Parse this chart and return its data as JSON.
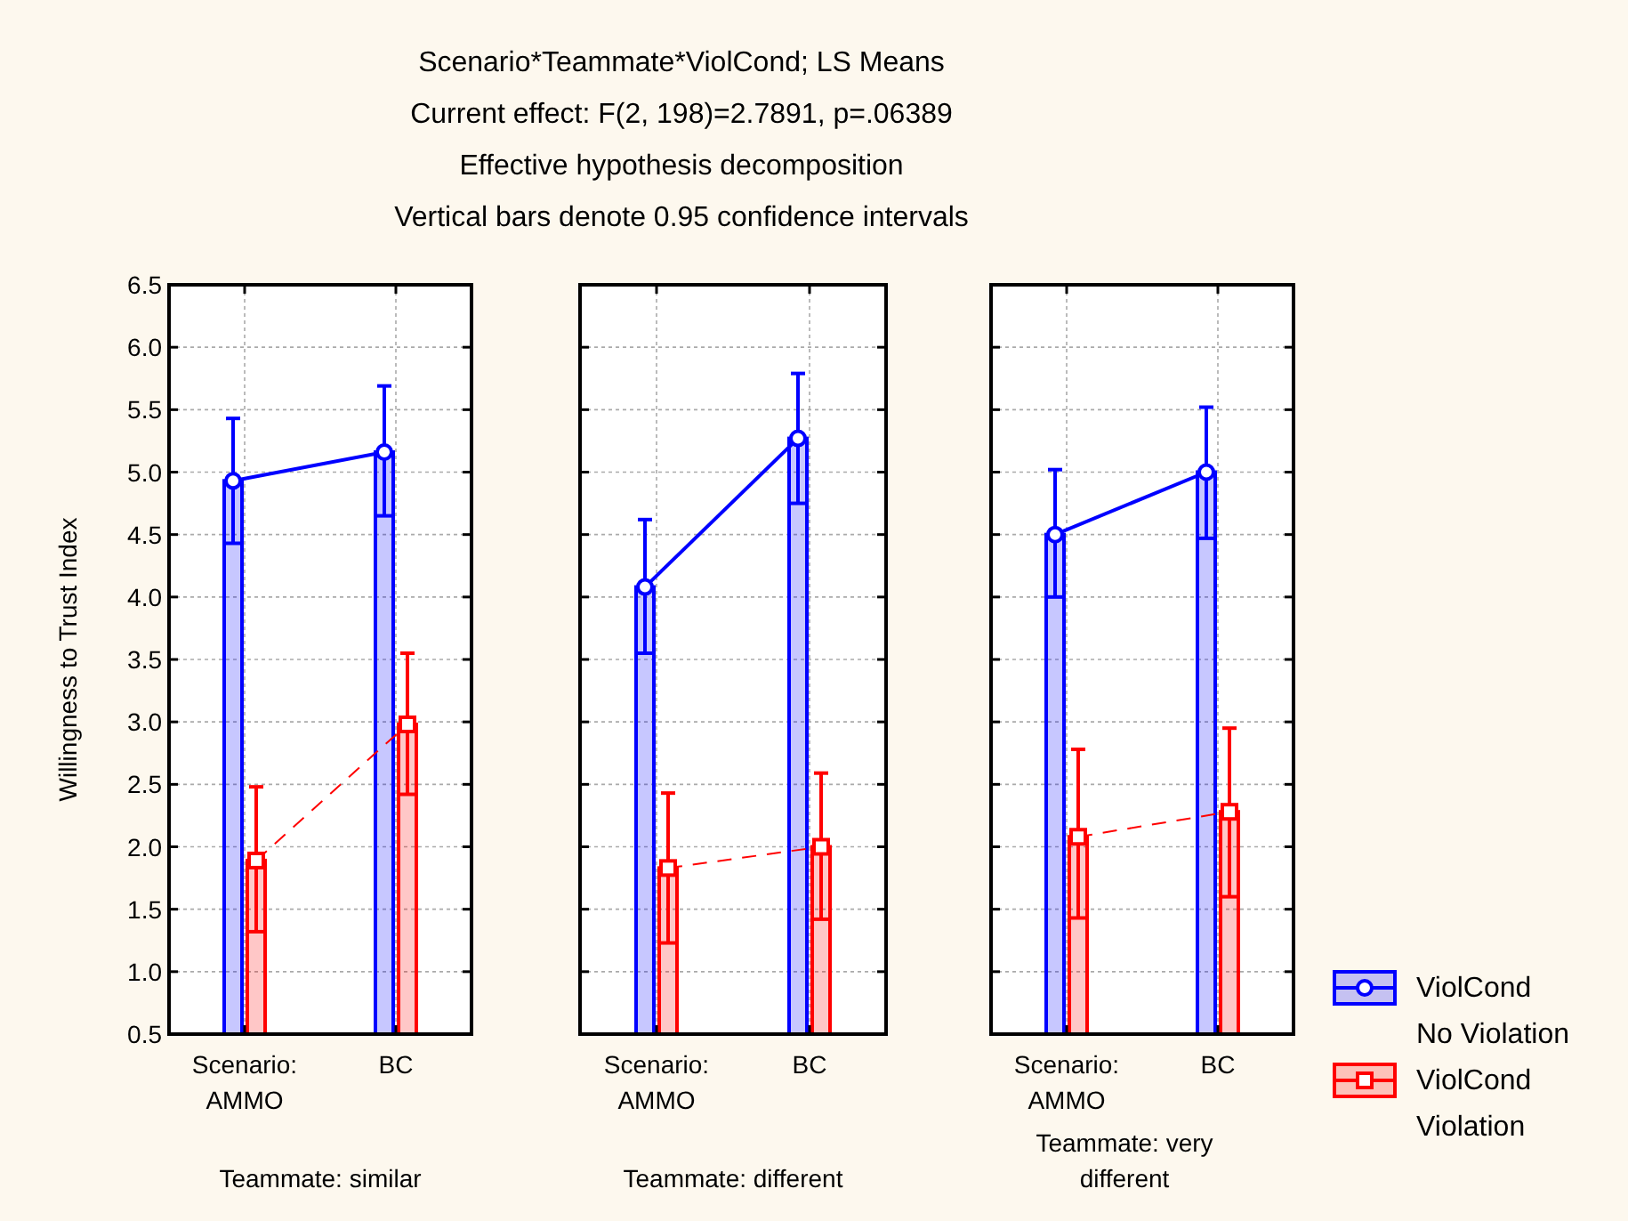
{
  "chart_data": [
    {
      "type": "bar",
      "ylabel": "Willingness to Trust Index",
      "xlabel": "Teammate: similar",
      "categories": [
        "Scenario:\nAMMO",
        "BC"
      ],
      "ylim": [
        0.5,
        6.5
      ],
      "yticks": [
        0.5,
        {
          "value": 1,
          "label": "1.0"
        },
        1.5,
        {
          "value": 2,
          "label": "2.0"
        },
        2.5,
        {
          "value": 3,
          "label": "3.0"
        },
        3.5,
        {
          "value": 4,
          "label": "4.0"
        },
        4.5,
        {
          "value": 5,
          "label": "5.0"
        },
        5.5,
        {
          "value": 6,
          "label": "6.0"
        },
        6.5
      ],
      "grid": true,
      "series": [
        {
          "color": "#0000ff",
          "values": [
            4.93,
            5.16
          ],
          "errors": [
            [
              4.43,
              5.43
            ],
            [
              4.65,
              5.69
            ]
          ]
        },
        {
          "color": "#ff0000",
          "values": [
            1.89,
            2.98
          ],
          "errors": [
            [
              1.32,
              2.48
            ],
            [
              2.42,
              3.55
            ]
          ]
        },
        {
          "type": "line",
          "color": "#0000ff",
          "values": [
            4.93,
            5.16
          ],
          "marker": "circle",
          "line_style": "solid"
        },
        {
          "type": "line",
          "color": "#ff0000",
          "values": [
            1.89,
            2.98
          ],
          "marker": "square",
          "line_style": "dashed"
        }
      ]
    },
    {
      "type": "bar",
      "title": "Scenario*Teammate*ViolCond; LS Means",
      "subtitle": "Current effect: F(2, 198)=2.7891, p=.06389",
      "annotations": [
        "Effective hypothesis decomposition",
        "Vertical bars denote 0.95 confidence intervals"
      ],
      "xlabel": "Teammate: different",
      "categories": [
        "Scenario:\nAMMO",
        "BC"
      ],
      "ylim": [
        0.5,
        6.5
      ],
      "yticks": [
        0.5,
        1,
        1.5,
        2,
        2.5,
        3,
        3.5,
        4,
        4.5,
        5,
        5.5,
        6,
        6.5
      ],
      "grid": true,
      "tick_labels": "x",
      "series": [
        {
          "color": "#0000ff",
          "values": [
            4.08,
            5.27
          ],
          "errors": [
            [
              3.55,
              4.62
            ],
            [
              4.75,
              5.79
            ]
          ]
        },
        {
          "color": "#ff0000",
          "values": [
            1.83,
            2.0
          ],
          "errors": [
            [
              1.23,
              2.43
            ],
            [
              1.42,
              2.59
            ]
          ]
        },
        {
          "type": "line",
          "color": "#0000ff",
          "values": [
            4.08,
            5.27
          ],
          "marker": "circle",
          "line_style": "solid"
        },
        {
          "type": "line",
          "color": "#ff0000",
          "values": [
            1.83,
            2.0
          ],
          "marker": "square",
          "line_style": "dashed"
        }
      ]
    },
    {
      "type": "bar",
      "xlabel": "Teammate: very\ndifferent",
      "categories": [
        "Scenario:\nAMMO",
        "BC"
      ],
      "ylim": [
        0.5,
        6.5
      ],
      "yticks": [
        0.5,
        1,
        1.5,
        2,
        2.5,
        3,
        3.5,
        4,
        4.5,
        5,
        5.5,
        6,
        6.5
      ],
      "grid": true,
      "tick_labels": "x",
      "legend": "bottom right",
      "series": [
        {
          "name": "ViolCond\nNo Violation",
          "color": "#0000ff",
          "values": [
            4.5,
            5.0
          ],
          "errors": [
            [
              4.0,
              5.02
            ],
            [
              4.47,
              5.52
            ]
          ]
        },
        {
          "name": "ViolCond\nViolation",
          "color": "#ff0000",
          "values": [
            2.08,
            2.28
          ],
          "errors": [
            [
              1.43,
              2.78
            ],
            [
              1.6,
              2.95
            ]
          ]
        },
        {
          "type": "line",
          "color": "#0000ff",
          "values": [
            4.5,
            5.0
          ],
          "marker": "circle",
          "line_style": "solid"
        },
        {
          "type": "line",
          "color": "#ff0000",
          "values": [
            2.08,
            2.28
          ],
          "marker": "square",
          "line_style": "dashed"
        }
      ]
    }
  ]
}
